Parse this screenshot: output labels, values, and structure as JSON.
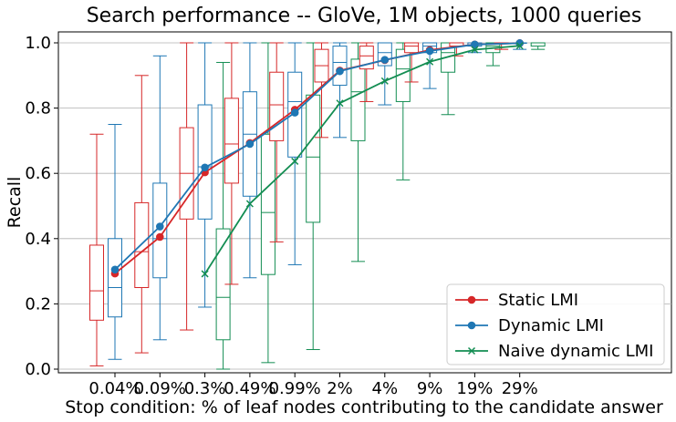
{
  "chart_data": {
    "type": "box+line",
    "title": "Search performance -- GloVe, 1M objects, 1000 queries",
    "xlabel": "Stop condition: % of leaf nodes contributing to the candidate answer",
    "ylabel": "Recall",
    "categories": [
      "0.04%",
      "0.09%",
      "0.3%",
      "0.49%",
      "0.99%",
      "2%",
      "4%",
      "9%",
      "19%",
      "29%"
    ],
    "ylim": [
      0.0,
      1.0
    ],
    "yticks": [
      "0.0",
      "0.2",
      "0.4",
      "0.6",
      "0.8",
      "1.0"
    ],
    "grid": "horizontal",
    "legend_position": "bottom-right",
    "series": [
      {
        "name": "Static LMI",
        "color": "#d62728",
        "marker": "circle",
        "means": [
          0.293,
          0.405,
          0.603,
          0.693,
          0.795,
          0.915,
          0.947,
          0.978,
          0.995,
          0.999
        ],
        "boxes": [
          {
            "whislo": 0.01,
            "q1": 0.15,
            "med": 0.24,
            "q3": 0.38,
            "whishi": 0.72
          },
          {
            "whislo": 0.05,
            "q1": 0.25,
            "med": 0.36,
            "q3": 0.51,
            "whishi": 0.9
          },
          {
            "whislo": 0.12,
            "q1": 0.46,
            "med": 0.6,
            "q3": 0.74,
            "whishi": 1.0
          },
          {
            "whislo": 0.26,
            "q1": 0.57,
            "med": 0.69,
            "q3": 0.83,
            "whishi": 1.0
          },
          {
            "whislo": 0.39,
            "q1": 0.7,
            "med": 0.81,
            "q3": 0.91,
            "whishi": 1.0
          },
          {
            "whislo": 0.71,
            "q1": 0.88,
            "med": 0.93,
            "q3": 0.98,
            "whishi": 1.0
          },
          {
            "whislo": 0.82,
            "q1": 0.92,
            "med": 0.96,
            "q3": 0.99,
            "whishi": 1.0
          },
          {
            "whislo": 0.88,
            "q1": 0.97,
            "med": 0.99,
            "q3": 1.0,
            "whishi": 1.0
          },
          {
            "whislo": 0.96,
            "q1": 0.99,
            "med": 1.0,
            "q3": 1.0,
            "whishi": 1.0
          },
          {
            "whislo": 0.98,
            "q1": 1.0,
            "med": 1.0,
            "q3": 1.0,
            "whishi": 1.0
          }
        ]
      },
      {
        "name": "Dynamic LMI",
        "color": "#1f77b4",
        "marker": "circle",
        "means": [
          0.305,
          0.437,
          0.618,
          0.69,
          0.786,
          0.913,
          0.948,
          0.975,
          0.995,
          0.999
        ],
        "boxes": [
          {
            "whislo": 0.03,
            "q1": 0.16,
            "med": 0.25,
            "q3": 0.4,
            "whishi": 0.75
          },
          {
            "whislo": 0.09,
            "q1": 0.28,
            "med": 0.4,
            "q3": 0.57,
            "whishi": 0.96
          },
          {
            "whislo": 0.19,
            "q1": 0.46,
            "med": 0.62,
            "q3": 0.81,
            "whishi": 1.0
          },
          {
            "whislo": 0.28,
            "q1": 0.53,
            "med": 0.72,
            "q3": 0.85,
            "whishi": 1.0
          },
          {
            "whislo": 0.32,
            "q1": 0.65,
            "med": 0.82,
            "q3": 0.91,
            "whishi": 1.0
          },
          {
            "whislo": 0.71,
            "q1": 0.87,
            "med": 0.94,
            "q3": 0.99,
            "whishi": 1.0
          },
          {
            "whislo": 0.81,
            "q1": 0.93,
            "med": 0.97,
            "q3": 1.0,
            "whishi": 1.0
          },
          {
            "whislo": 0.86,
            "q1": 0.97,
            "med": 0.99,
            "q3": 1.0,
            "whishi": 1.0
          },
          {
            "whislo": 0.97,
            "q1": 0.99,
            "med": 1.0,
            "q3": 1.0,
            "whishi": 1.0
          },
          {
            "whislo": 0.98,
            "q1": 1.0,
            "med": 1.0,
            "q3": 1.0,
            "whishi": 1.0
          }
        ]
      },
      {
        "name": "Naive dynamic LMI",
        "color": "#138d52",
        "marker": "x",
        "means": [
          null,
          null,
          0.292,
          0.507,
          0.637,
          0.815,
          0.883,
          0.942,
          0.979,
          0.991
        ],
        "boxes": [
          null,
          null,
          {
            "whislo": 0.0,
            "q1": 0.09,
            "med": 0.22,
            "q3": 0.43,
            "whishi": 0.94
          },
          {
            "whislo": 0.02,
            "q1": 0.29,
            "med": 0.48,
            "q3": 0.72,
            "whishi": 1.0
          },
          {
            "whislo": 0.06,
            "q1": 0.45,
            "med": 0.65,
            "q3": 0.84,
            "whishi": 1.0
          },
          {
            "whislo": 0.33,
            "q1": 0.7,
            "med": 0.85,
            "q3": 0.95,
            "whishi": 1.0
          },
          {
            "whislo": 0.58,
            "q1": 0.82,
            "med": 0.92,
            "q3": 0.98,
            "whishi": 1.0
          },
          {
            "whislo": 0.78,
            "q1": 0.91,
            "med": 0.97,
            "q3": 1.0,
            "whishi": 1.0
          },
          {
            "whislo": 0.93,
            "q1": 0.97,
            "med": 0.99,
            "q3": 1.0,
            "whishi": 1.0
          },
          {
            "whislo": 0.98,
            "q1": 0.99,
            "med": 1.0,
            "q3": 1.0,
            "whishi": 1.0
          }
        ]
      }
    ]
  }
}
